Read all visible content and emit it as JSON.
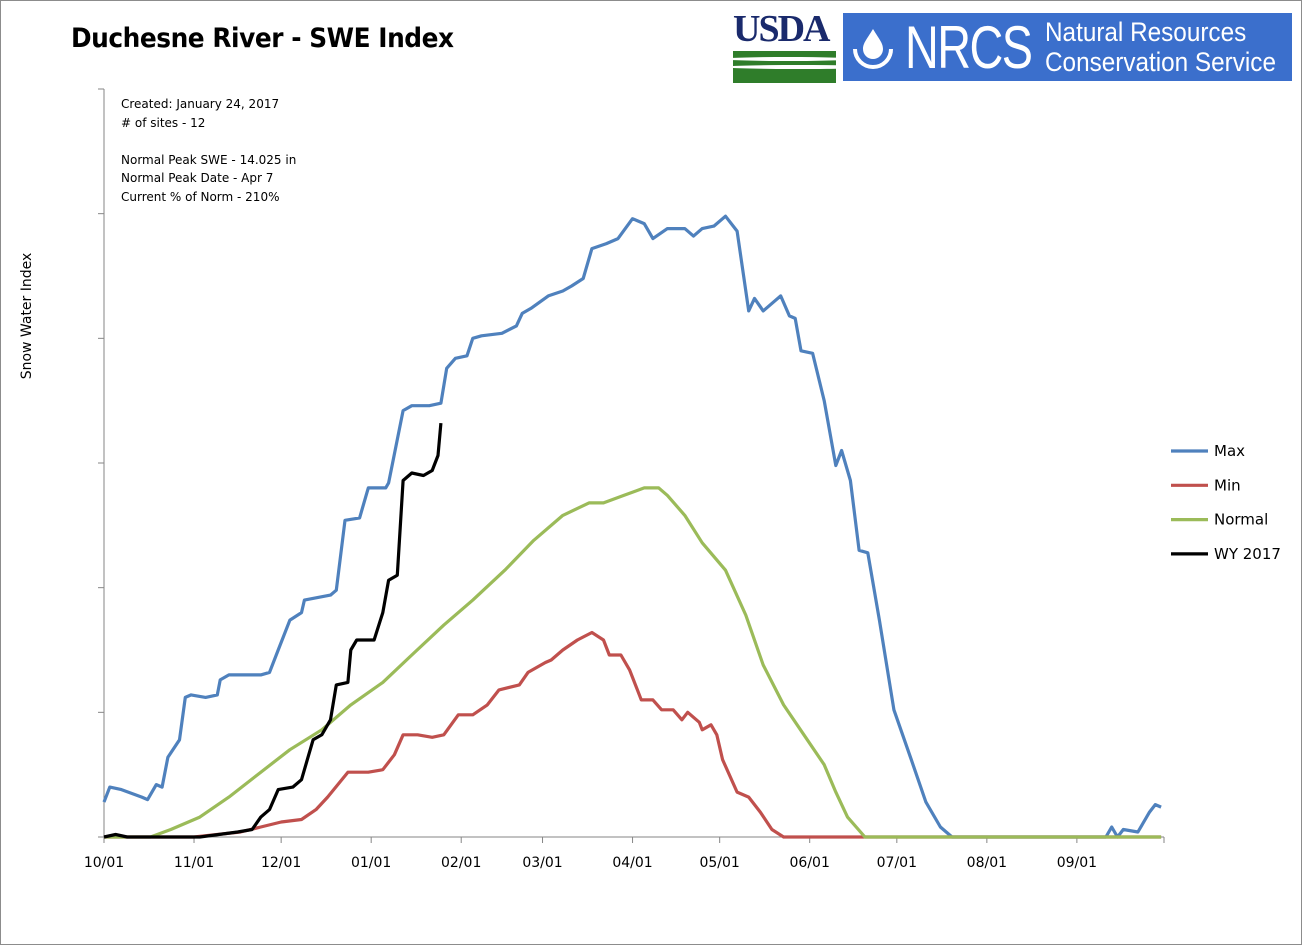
{
  "logos": {
    "usda": "USDA",
    "nrcs_abbr": "NRCS",
    "nrcs_line1": "Natural Resources",
    "nrcs_line2": "Conservation Service"
  },
  "info": {
    "created": "Created: January 24, 2017",
    "sites": "# of sites - 12",
    "peak_swe": "Normal Peak SWE - 14.025  in",
    "peak_date": "Normal Peak Date - Apr 7",
    "current_pct": "Current % of Norm - 210%"
  },
  "chart_data": {
    "type": "line",
    "title": "Duchesne River - SWE Index",
    "xlabel": "",
    "ylabel": "Snow Water Index",
    "x_tick_labels": [
      "10/01",
      "11/01",
      "12/01",
      "01/01",
      "02/01",
      "03/01",
      "04/01",
      "05/01",
      "06/01",
      "07/01",
      "08/01",
      "09/01"
    ],
    "ylim": [
      0,
      30
    ],
    "y_ticks": [
      0,
      5,
      10,
      15,
      20,
      25,
      30
    ],
    "y_tick_labels_shown": false,
    "grid": false,
    "legend_position": "right",
    "series": [
      {
        "name": "Max",
        "color": "#4f81bd",
        "points": [
          [
            "10-01",
            1.4
          ],
          [
            "10-03",
            2.0
          ],
          [
            "10-07",
            1.9
          ],
          [
            "10-14",
            1.6
          ],
          [
            "10-16",
            1.5
          ],
          [
            "10-19",
            2.1
          ],
          [
            "10-21",
            2.0
          ],
          [
            "10-23",
            3.2
          ],
          [
            "10-27",
            3.9
          ],
          [
            "10-29",
            5.6
          ],
          [
            "10-31",
            5.7
          ],
          [
            "11-05",
            5.6
          ],
          [
            "11-09",
            5.7
          ],
          [
            "11-10",
            6.3
          ],
          [
            "11-13",
            6.5
          ],
          [
            "11-24",
            6.5
          ],
          [
            "11-27",
            6.6
          ],
          [
            "11-30",
            7.5
          ],
          [
            "12-04",
            8.7
          ],
          [
            "12-08",
            9.0
          ],
          [
            "12-09",
            9.5
          ],
          [
            "12-18",
            9.7
          ],
          [
            "12-20",
            9.9
          ],
          [
            "12-23",
            12.7
          ],
          [
            "12-28",
            12.8
          ],
          [
            "12-31",
            14.0
          ],
          [
            "01-06",
            14.0
          ],
          [
            "01-07",
            14.2
          ],
          [
            "01-12",
            17.1
          ],
          [
            "01-15",
            17.3
          ],
          [
            "01-21",
            17.3
          ],
          [
            "01-25",
            17.4
          ],
          [
            "01-27",
            18.8
          ],
          [
            "01-30",
            19.2
          ],
          [
            "02-03",
            19.3
          ],
          [
            "02-05",
            20.0
          ],
          [
            "02-08",
            20.1
          ],
          [
            "02-15",
            20.2
          ],
          [
            "02-20",
            20.5
          ],
          [
            "02-22",
            21.0
          ],
          [
            "02-25",
            21.2
          ],
          [
            "03-03",
            21.7
          ],
          [
            "03-08",
            21.9
          ],
          [
            "03-11",
            22.1
          ],
          [
            "03-15",
            22.4
          ],
          [
            "03-18",
            23.6
          ],
          [
            "03-23",
            23.8
          ],
          [
            "03-27",
            24.0
          ],
          [
            "04-01",
            24.8
          ],
          [
            "04-05",
            24.6
          ],
          [
            "04-08",
            24.0
          ],
          [
            "04-13",
            24.4
          ],
          [
            "04-19",
            24.4
          ],
          [
            "04-22",
            24.1
          ],
          [
            "04-25",
            24.4
          ],
          [
            "04-29",
            24.5
          ],
          [
            "05-03",
            24.9
          ],
          [
            "05-07",
            24.3
          ],
          [
            "05-11",
            21.1
          ],
          [
            "05-13",
            21.6
          ],
          [
            "05-16",
            21.1
          ],
          [
            "05-20",
            21.5
          ],
          [
            "05-22",
            21.7
          ],
          [
            "05-25",
            20.9
          ],
          [
            "05-27",
            20.8
          ],
          [
            "05-29",
            19.5
          ],
          [
            "06-02",
            19.4
          ],
          [
            "06-06",
            17.5
          ],
          [
            "06-10",
            14.9
          ],
          [
            "06-12",
            15.5
          ],
          [
            "06-15",
            14.3
          ],
          [
            "06-18",
            11.5
          ],
          [
            "06-21",
            11.4
          ],
          [
            "06-25",
            8.7
          ],
          [
            "06-30",
            5.1
          ],
          [
            "07-06",
            3.1
          ],
          [
            "07-11",
            1.4
          ],
          [
            "07-16",
            0.4
          ],
          [
            "07-20",
            0
          ],
          [
            "09-11",
            0
          ],
          [
            "09-13",
            0.4
          ],
          [
            "09-15",
            0
          ],
          [
            "09-17",
            0.3
          ],
          [
            "09-22",
            0.2
          ],
          [
            "09-26",
            1.0
          ],
          [
            "09-28",
            1.3
          ],
          [
            "09-30",
            1.2
          ]
        ]
      },
      {
        "name": "Min",
        "color": "#c0504d",
        "points": [
          [
            "10-01",
            0
          ],
          [
            "11-01",
            0
          ],
          [
            "11-17",
            0.2
          ],
          [
            "11-24",
            0.4
          ],
          [
            "12-01",
            0.6
          ],
          [
            "12-08",
            0.7
          ],
          [
            "12-13",
            1.1
          ],
          [
            "12-17",
            1.6
          ],
          [
            "12-24",
            2.6
          ],
          [
            "12-31",
            2.6
          ],
          [
            "01-05",
            2.7
          ],
          [
            "01-09",
            3.3
          ],
          [
            "01-12",
            4.1
          ],
          [
            "01-17",
            4.1
          ],
          [
            "01-22",
            4.0
          ],
          [
            "01-26",
            4.1
          ],
          [
            "01-31",
            4.9
          ],
          [
            "02-05",
            4.9
          ],
          [
            "02-10",
            5.3
          ],
          [
            "02-14",
            5.9
          ],
          [
            "02-21",
            6.1
          ],
          [
            "02-24",
            6.6
          ],
          [
            "03-02",
            7.0
          ],
          [
            "03-04",
            7.1
          ],
          [
            "03-08",
            7.5
          ],
          [
            "03-13",
            7.9
          ],
          [
            "03-18",
            8.2
          ],
          [
            "03-22",
            7.9
          ],
          [
            "03-24",
            7.3
          ],
          [
            "03-28",
            7.3
          ],
          [
            "03-31",
            6.7
          ],
          [
            "04-04",
            5.5
          ],
          [
            "04-08",
            5.5
          ],
          [
            "04-11",
            5.1
          ],
          [
            "04-15",
            5.1
          ],
          [
            "04-18",
            4.7
          ],
          [
            "04-20",
            5.0
          ],
          [
            "04-24",
            4.6
          ],
          [
            "04-25",
            4.3
          ],
          [
            "04-28",
            4.5
          ],
          [
            "04-30",
            4.1
          ],
          [
            "05-02",
            3.1
          ],
          [
            "05-07",
            1.8
          ],
          [
            "05-11",
            1.6
          ],
          [
            "05-15",
            1.0
          ],
          [
            "05-19",
            0.3
          ],
          [
            "05-23",
            0
          ],
          [
            "09-30",
            0
          ]
        ]
      },
      {
        "name": "Normal",
        "color": "#9bbb59",
        "points": [
          [
            "10-01",
            0
          ],
          [
            "10-17",
            0
          ],
          [
            "10-24",
            0.3
          ],
          [
            "11-03",
            0.8
          ],
          [
            "11-13",
            1.6
          ],
          [
            "11-24",
            2.6
          ],
          [
            "12-04",
            3.5
          ],
          [
            "12-15",
            4.3
          ],
          [
            "12-25",
            5.3
          ],
          [
            "01-05",
            6.2
          ],
          [
            "01-15",
            7.3
          ],
          [
            "01-26",
            8.5
          ],
          [
            "02-05",
            9.5
          ],
          [
            "02-16",
            10.7
          ],
          [
            "02-26",
            11.9
          ],
          [
            "03-08",
            12.9
          ],
          [
            "03-17",
            13.4
          ],
          [
            "03-22",
            13.4
          ],
          [
            "03-29",
            13.7
          ],
          [
            "04-05",
            14.0
          ],
          [
            "04-10",
            14.0
          ],
          [
            "04-13",
            13.7
          ],
          [
            "04-19",
            12.9
          ],
          [
            "04-25",
            11.8
          ],
          [
            "05-03",
            10.7
          ],
          [
            "05-10",
            8.9
          ],
          [
            "05-16",
            6.9
          ],
          [
            "05-23",
            5.3
          ],
          [
            "05-30",
            4.1
          ],
          [
            "06-06",
            2.9
          ],
          [
            "06-10",
            1.8
          ],
          [
            "06-14",
            0.8
          ],
          [
            "06-20",
            0
          ],
          [
            "09-30",
            0
          ]
        ]
      },
      {
        "name": "WY 2017",
        "color": "#000000",
        "points": [
          [
            "10-01",
            0
          ],
          [
            "10-05",
            0.1
          ],
          [
            "10-09",
            0
          ],
          [
            "11-03",
            0
          ],
          [
            "11-16",
            0.2
          ],
          [
            "11-21",
            0.3
          ],
          [
            "11-24",
            0.8
          ],
          [
            "11-27",
            1.1
          ],
          [
            "11-30",
            1.9
          ],
          [
            "12-05",
            2.0
          ],
          [
            "12-08",
            2.3
          ],
          [
            "12-10",
            3.1
          ],
          [
            "12-12",
            3.9
          ],
          [
            "12-15",
            4.1
          ],
          [
            "12-18",
            4.7
          ],
          [
            "12-20",
            6.1
          ],
          [
            "12-24",
            6.2
          ],
          [
            "12-25",
            7.5
          ],
          [
            "12-27",
            7.9
          ],
          [
            "01-02",
            7.9
          ],
          [
            "01-05",
            9.0
          ],
          [
            "01-07",
            10.3
          ],
          [
            "01-10",
            10.5
          ],
          [
            "01-12",
            14.3
          ],
          [
            "01-15",
            14.6
          ],
          [
            "01-19",
            14.5
          ],
          [
            "01-22",
            14.7
          ],
          [
            "01-24",
            15.3
          ],
          [
            "01-25",
            16.6
          ]
        ]
      }
    ]
  }
}
